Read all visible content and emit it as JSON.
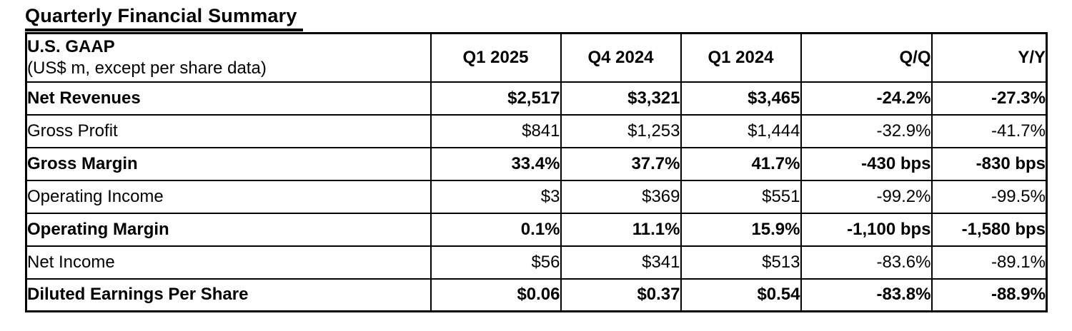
{
  "page": {
    "background_color": "#ffffff",
    "text_color": "#000000",
    "border_color": "#000000"
  },
  "title": "Quarterly Financial Summary",
  "table": {
    "header": {
      "label_line1": "U.S. GAAP",
      "label_line2": "(US$ m, except per share data)",
      "columns": [
        "Q1 2025",
        "Q4 2024",
        "Q1 2024",
        "Q/Q",
        "Y/Y"
      ]
    },
    "rows": [
      {
        "label": "Net Revenues",
        "emphasis": true,
        "values": [
          "$2,517",
          "$3,321",
          "$3,465",
          "-24.2%",
          "-27.3%"
        ]
      },
      {
        "label": "Gross Profit",
        "emphasis": false,
        "values": [
          "$841",
          "$1,253",
          "$1,444",
          "-32.9%",
          "-41.7%"
        ]
      },
      {
        "label": "Gross Margin",
        "emphasis": true,
        "values": [
          "33.4%",
          "37.7%",
          "41.7%",
          "-430 bps",
          "-830 bps"
        ]
      },
      {
        "label": "Operating Income",
        "emphasis": false,
        "values": [
          "$3",
          "$369",
          "$551",
          "-99.2%",
          "-99.5%"
        ]
      },
      {
        "label": "Operating Margin",
        "emphasis": true,
        "values": [
          "0.1%",
          "11.1%",
          "15.9%",
          "-1,100 bps",
          "-1,580 bps"
        ]
      },
      {
        "label": "Net Income",
        "emphasis": false,
        "values": [
          "$56",
          "$341",
          "$513",
          "-83.6%",
          "-89.1%"
        ]
      },
      {
        "label": "Diluted Earnings Per Share",
        "emphasis": true,
        "values": [
          "$0.06",
          "$0.37",
          "$0.54",
          "-83.8%",
          "-88.9%"
        ]
      }
    ]
  }
}
